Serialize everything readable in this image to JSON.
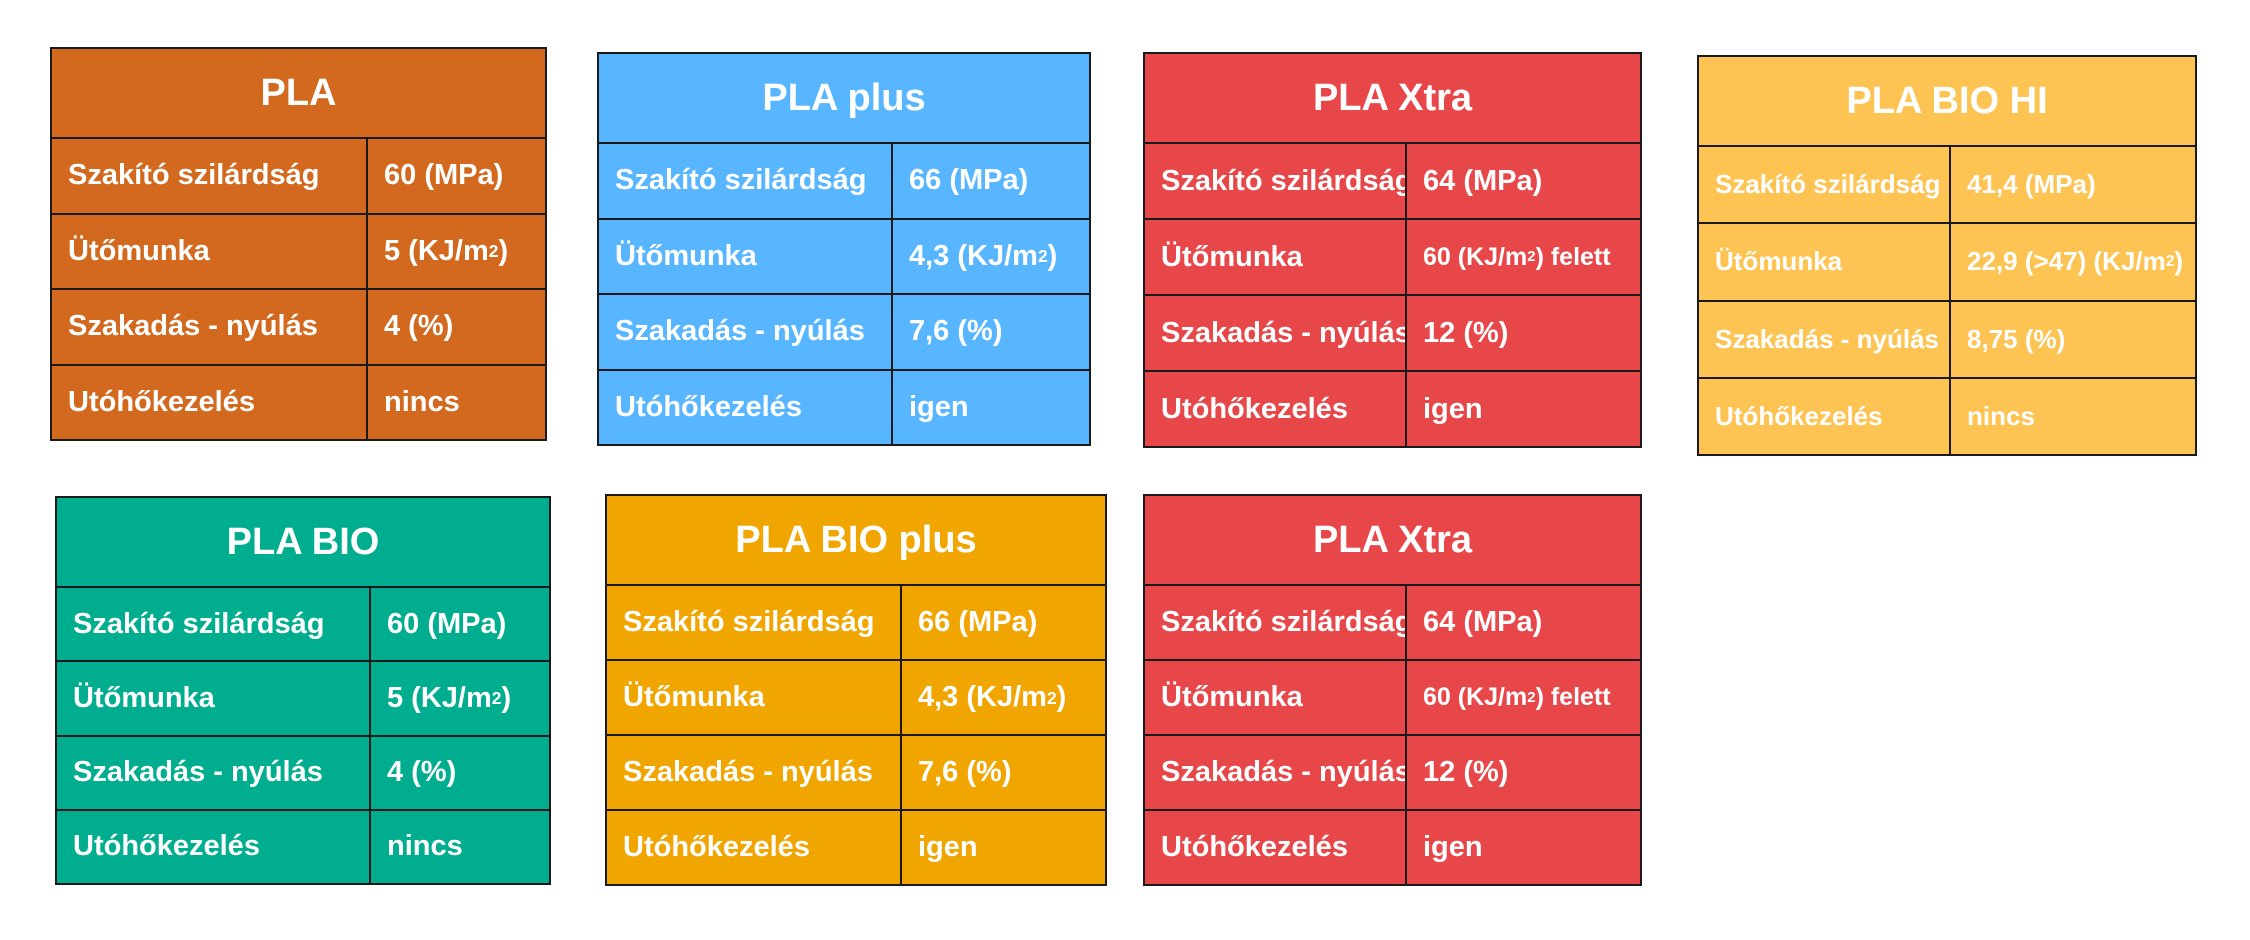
{
  "row_labels": [
    "Szakító szilárdság",
    "Ütőmunka",
    "Szakadás - nyúlás",
    "Utóhőkezelés"
  ],
  "cards": [
    {
      "id": "pla",
      "title": "PLA",
      "color": "#d2691e",
      "values": [
        "60 (MPa)",
        "5 (KJ/m²)",
        "4 (%)",
        "nincs"
      ]
    },
    {
      "id": "pla-plus",
      "title": "PLA plus",
      "color": "#57b6ff",
      "values": [
        "66 (MPa)",
        "4,3 (KJ/m²)",
        "7,6 (%)",
        "igen"
      ]
    },
    {
      "id": "pla-xtra-1",
      "title": "PLA Xtra",
      "color": "#e8474a",
      "values": [
        "64 (MPa)",
        "60 (KJ/m²) felett",
        "12 (%)",
        "igen"
      ]
    },
    {
      "id": "pla-bio-hi",
      "title": "PLA BIO HI",
      "color": "#fdc453",
      "values": [
        "41,4 (MPa)",
        "22,9 (>47) (KJ/m²)",
        "8,75 (%)",
        "nincs"
      ]
    },
    {
      "id": "pla-bio",
      "title": "PLA BIO",
      "color": "#00ad8f",
      "values": [
        "60 (MPa)",
        "5 (KJ/m²)",
        "4 (%)",
        "nincs"
      ]
    },
    {
      "id": "pla-bio-plus",
      "title": "PLA BIO plus",
      "color": "#f0a500",
      "values": [
        "66 (MPa)",
        "4,3 (KJ/m²)",
        "7,6 (%)",
        "igen"
      ]
    },
    {
      "id": "pla-xtra-2",
      "title": "PLA Xtra",
      "color": "#e8474a",
      "values": [
        "64 (MPa)",
        "60 (KJ/m²) felett",
        "12 (%)",
        "igen"
      ]
    }
  ]
}
